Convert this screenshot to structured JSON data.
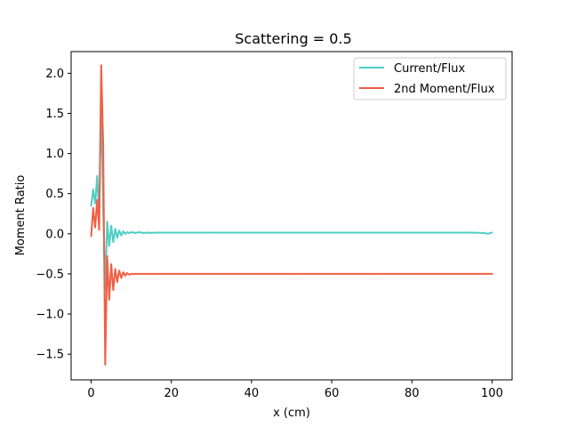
{
  "chart_data": {
    "type": "line",
    "title": "Scattering = 0.5",
    "xlabel": "x (cm)",
    "ylabel": "Moment Ratio",
    "xlim": [
      -5,
      105
    ],
    "ylim": [
      -1.82,
      2.27
    ],
    "xticks": [
      0,
      20,
      40,
      60,
      80,
      100
    ],
    "yticks": [
      -1.5,
      -1.0,
      -0.5,
      0.0,
      0.5,
      1.0,
      1.5,
      2.0
    ],
    "xtick_labels": [
      "0",
      "20",
      "40",
      "60",
      "80",
      "100"
    ],
    "ytick_labels": [
      "−1.5",
      "−1.0",
      "−0.5",
      "0.0",
      "0.5",
      "1.0",
      "1.5",
      "2.0"
    ],
    "grid": false,
    "legend_position": "top-right",
    "series": [
      {
        "name": "Current/Flux",
        "color": "#4ecdc4",
        "x": [
          0,
          0.5,
          1.0,
          1.5,
          2.0,
          2.5,
          3.0,
          3.5,
          4.0,
          4.5,
          5.0,
          5.5,
          6.0,
          6.5,
          7.0,
          7.5,
          8.0,
          8.5,
          9.0,
          9.5,
          10,
          11,
          12,
          13,
          14,
          15,
          16,
          18,
          20,
          30,
          40,
          50,
          60,
          70,
          80,
          90,
          95,
          98,
          99,
          100
        ],
        "y": [
          0.35,
          0.55,
          0.38,
          0.72,
          0.22,
          1.72,
          0.3,
          -0.7,
          0.15,
          -0.15,
          0.1,
          -0.1,
          0.06,
          -0.05,
          0.04,
          -0.02,
          0.03,
          0.0,
          0.02,
          0.01,
          0.02,
          0.01,
          0.02,
          0.01,
          0.015,
          0.01,
          0.015,
          0.015,
          0.015,
          0.015,
          0.015,
          0.015,
          0.015,
          0.015,
          0.015,
          0.015,
          0.015,
          0.01,
          0.0,
          0.015
        ]
      },
      {
        "name": "2nd Moment/Flux",
        "color": "#f05f45",
        "x": [
          0,
          0.5,
          1.0,
          1.5,
          2.0,
          2.5,
          3.0,
          3.5,
          4.0,
          4.5,
          5.0,
          5.5,
          6.0,
          6.5,
          7.0,
          7.5,
          8.0,
          8.5,
          9.0,
          9.5,
          10,
          11,
          12,
          14,
          16,
          20,
          30,
          40,
          50,
          60,
          70,
          80,
          90,
          100
        ],
        "y": [
          -0.03,
          0.32,
          0.08,
          0.42,
          0.05,
          2.1,
          1.1,
          -1.63,
          -0.28,
          -0.82,
          -0.38,
          -0.7,
          -0.44,
          -0.6,
          -0.46,
          -0.55,
          -0.48,
          -0.52,
          -0.49,
          -0.51,
          -0.5,
          -0.5,
          -0.5,
          -0.5,
          -0.5,
          -0.5,
          -0.5,
          -0.5,
          -0.5,
          -0.5,
          -0.5,
          -0.5,
          -0.5,
          -0.5
        ]
      }
    ]
  }
}
